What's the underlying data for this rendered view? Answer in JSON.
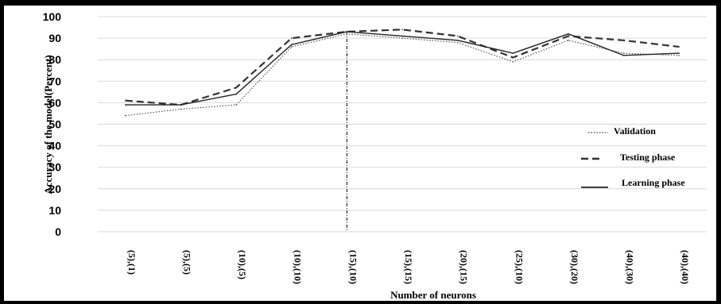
{
  "chart_data": {
    "type": "line",
    "xlabel": "Number of neurons",
    "ylabel": "Accuracy of the model(Percent)",
    "categories": [
      "(5),(1)",
      "(5),(5)",
      "(10),(5)",
      "(10),(10)",
      "(15),(10)",
      "(15),(15)",
      "(20),(15)",
      "(25),(10)",
      "(30),(20)",
      "(40),(30)",
      "(40),(40)"
    ],
    "ylim": [
      0,
      100
    ],
    "yticks": [
      0,
      10,
      20,
      30,
      40,
      50,
      60,
      70,
      80,
      90,
      100
    ],
    "grid": true,
    "legend_position": "right",
    "series": [
      {
        "name": "Validation",
        "style": "dotted",
        "values": [
          54,
          57,
          59,
          86,
          92,
          90,
          88,
          79,
          89,
          83,
          82
        ]
      },
      {
        "name": "Testing phase",
        "style": "dashed",
        "values": [
          61,
          59,
          67,
          90,
          93,
          94,
          91,
          81,
          91,
          89,
          86
        ]
      },
      {
        "name": "Learning phase",
        "style": "solid",
        "values": [
          59,
          59,
          64,
          87,
          93,
          91,
          89,
          83,
          92,
          82,
          83
        ]
      }
    ],
    "marker_category": "(15),(10)"
  }
}
